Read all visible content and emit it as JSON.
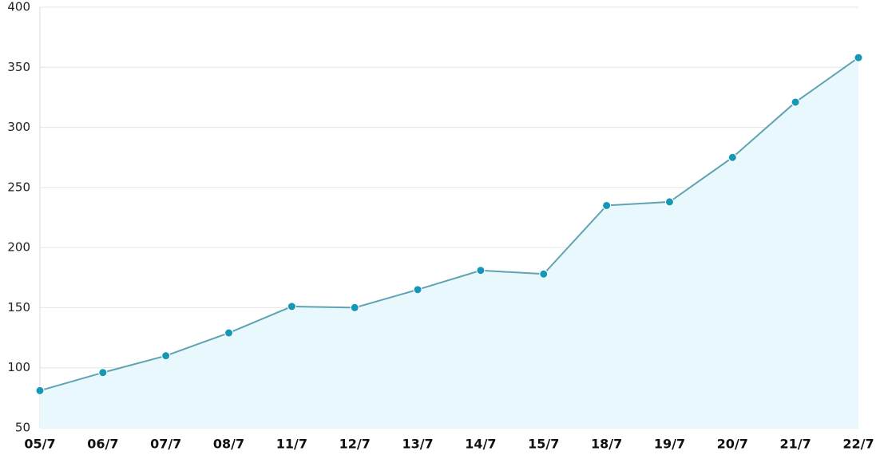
{
  "chart_data": {
    "type": "area",
    "categories": [
      "05/7",
      "06/7",
      "07/7",
      "08/7",
      "11/7",
      "12/7",
      "13/7",
      "14/7",
      "15/7",
      "18/7",
      "19/7",
      "20/7",
      "21/7",
      "22/7"
    ],
    "values": [
      81,
      96,
      110,
      129,
      151,
      150,
      165,
      181,
      178,
      235,
      238,
      275,
      321,
      358
    ],
    "color": "#5fa3b3",
    "marker_color": "#1597b8",
    "fill_color": "#e9f8fd",
    "ylim": [
      50,
      400
    ],
    "yticks": [
      50,
      100,
      150,
      200,
      250,
      300,
      350,
      400
    ],
    "grid": true
  }
}
